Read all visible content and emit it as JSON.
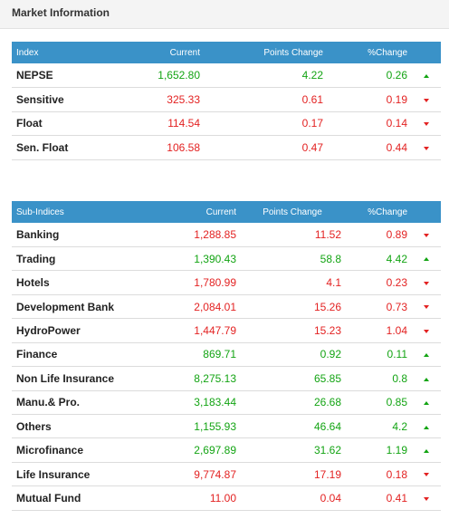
{
  "header": {
    "title": "Market Information"
  },
  "indices": {
    "columns": [
      "Index",
      "Current",
      "Points Change",
      "%Change"
    ],
    "rows": [
      {
        "name": "NEPSE",
        "current": "1,652.80",
        "points": "4.22",
        "percent": "0.26",
        "direction": "up"
      },
      {
        "name": "Sensitive",
        "current": "325.33",
        "points": "0.61",
        "percent": "0.19",
        "direction": "down"
      },
      {
        "name": "Float",
        "current": "114.54",
        "points": "0.17",
        "percent": "0.14",
        "direction": "down"
      },
      {
        "name": "Sen. Float",
        "current": "106.58",
        "points": "0.47",
        "percent": "0.44",
        "direction": "down"
      }
    ]
  },
  "subindices": {
    "columns": [
      "Sub-Indices",
      "Current",
      "Points Change",
      "%Change"
    ],
    "rows": [
      {
        "name": "Banking",
        "current": "1,288.85",
        "points": "11.52",
        "percent": "0.89",
        "direction": "down"
      },
      {
        "name": "Trading",
        "current": "1,390.43",
        "points": "58.8",
        "percent": "4.42",
        "direction": "up"
      },
      {
        "name": "Hotels",
        "current": "1,780.99",
        "points": "4.1",
        "percent": "0.23",
        "direction": "down"
      },
      {
        "name": "Development Bank",
        "current": "2,084.01",
        "points": "15.26",
        "percent": "0.73",
        "direction": "down"
      },
      {
        "name": "HydroPower",
        "current": "1,447.79",
        "points": "15.23",
        "percent": "1.04",
        "direction": "down"
      },
      {
        "name": "Finance",
        "current": "869.71",
        "points": "0.92",
        "percent": "0.11",
        "direction": "up"
      },
      {
        "name": "Non Life Insurance",
        "current": "8,275.13",
        "points": "65.85",
        "percent": "0.8",
        "direction": "up"
      },
      {
        "name": "Manu.& Pro.",
        "current": "3,183.44",
        "points": "26.68",
        "percent": "0.85",
        "direction": "up"
      },
      {
        "name": "Others",
        "current": "1,155.93",
        "points": "46.64",
        "percent": "4.2",
        "direction": "up"
      },
      {
        "name": "Microfinance",
        "current": "2,697.89",
        "points": "31.62",
        "percent": "1.19",
        "direction": "up"
      },
      {
        "name": "Life Insurance",
        "current": "9,774.87",
        "points": "17.19",
        "percent": "0.18",
        "direction": "down"
      },
      {
        "name": "Mutual Fund",
        "current": "11.00",
        "points": "0.04",
        "percent": "0.41",
        "direction": "down"
      }
    ]
  },
  "colors": {
    "header_blue": "#3a92c8",
    "up": "#13a413",
    "down": "#e32222"
  },
  "icons": {
    "up": "triangle-up-icon",
    "down": "triangle-down-icon"
  }
}
